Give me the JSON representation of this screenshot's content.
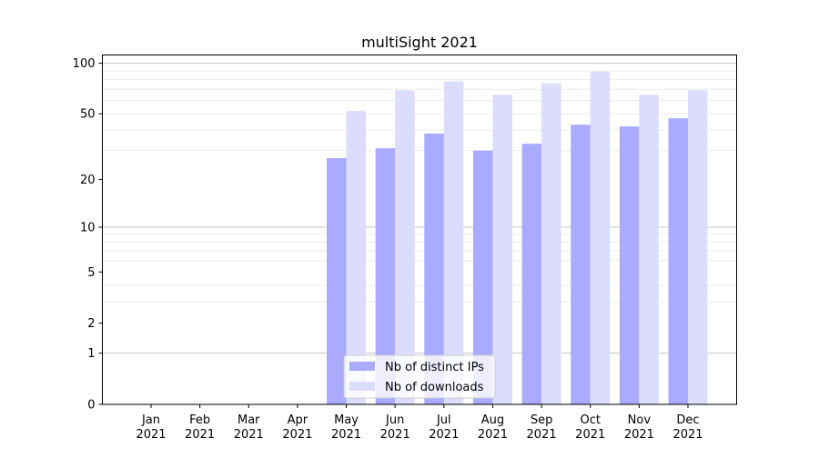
{
  "chart_data": {
    "type": "bar",
    "title": "multiSight 2021",
    "xlabel": "",
    "ylabel": "",
    "yscale": "log(1+y)",
    "ylim": [
      0,
      112
    ],
    "yticks": [
      0,
      1,
      2,
      5,
      10,
      20,
      50,
      100
    ],
    "ytick_labels": [
      "0",
      "1",
      "2",
      "5",
      "10",
      "20",
      "50",
      "100"
    ],
    "minor_grid": [
      3,
      4,
      6,
      7,
      8,
      9,
      30,
      40,
      50,
      60,
      70,
      80,
      90
    ],
    "major_grid": [
      1,
      10,
      100
    ],
    "categories": [
      [
        "Jan",
        "2021"
      ],
      [
        "Feb",
        "2021"
      ],
      [
        "Mar",
        "2021"
      ],
      [
        "Apr",
        "2021"
      ],
      [
        "May",
        "2021"
      ],
      [
        "Jun",
        "2021"
      ],
      [
        "Jul",
        "2021"
      ],
      [
        "Aug",
        "2021"
      ],
      [
        "Sep",
        "2021"
      ],
      [
        "Oct",
        "2021"
      ],
      [
        "Nov",
        "2021"
      ],
      [
        "Dec",
        "2021"
      ]
    ],
    "series": [
      {
        "name": "Nb of distinct IPs",
        "color": "#aaaaff",
        "values": [
          0,
          0,
          0,
          0,
          27,
          31,
          38,
          30,
          33,
          43,
          42,
          47
        ]
      },
      {
        "name": "Nb of downloads",
        "color": "#dcdcfc",
        "values": [
          0,
          0,
          0,
          0,
          52,
          69,
          78,
          65,
          76,
          89,
          65,
          69
        ]
      }
    ],
    "legend": "bottom-center"
  }
}
